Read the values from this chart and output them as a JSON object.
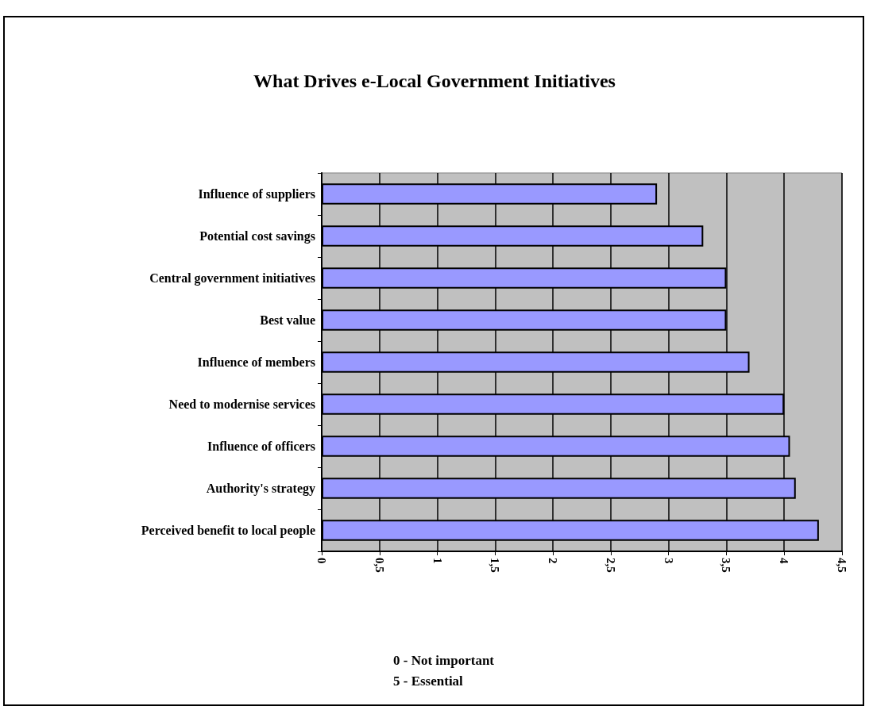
{
  "chart_data": {
    "type": "bar",
    "orientation": "horizontal",
    "title": "What Drives e-Local Government Initiatives",
    "categories": [
      "Influence of suppliers",
      "Potential cost savings",
      "Central government initiatives",
      "Best value",
      "Influence of members",
      "Need to modernise services",
      "Influence of officers",
      "Authority's strategy",
      "Perceived benefit to local people"
    ],
    "values": [
      2.9,
      3.3,
      3.5,
      3.5,
      3.7,
      4.0,
      4.05,
      4.1,
      4.3
    ],
    "color": "#9999ff",
    "xlim": [
      0,
      4.5
    ],
    "xticks": [
      0,
      {
        "value": 0.5,
        "label": "0,5"
      },
      1,
      {
        "value": 1.5,
        "label": "1,5"
      },
      2,
      {
        "value": 2.5,
        "label": "2,5"
      },
      3,
      {
        "value": 3.5,
        "label": "3,5"
      },
      4,
      {
        "value": 4.5,
        "label": "4,5"
      }
    ],
    "grid": "x",
    "annotations": [
      "0 - Not important",
      "5 - Essential"
    ]
  }
}
